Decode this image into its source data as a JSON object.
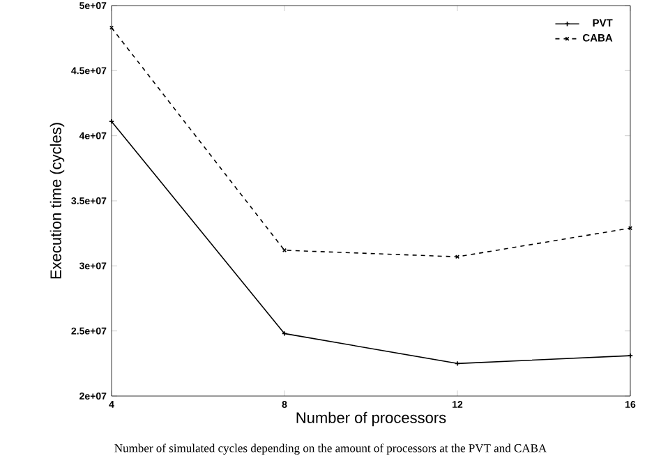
{
  "chart_data": {
    "type": "line",
    "xlabel": "Number of processors",
    "ylabel": "Execution time (cycles)",
    "x": [
      4,
      8,
      12,
      16
    ],
    "series": [
      {
        "name": "PVT",
        "color": "#000000",
        "marker": "plus",
        "line_style": "solid",
        "values": [
          41100000,
          24800000,
          22500000,
          23100000
        ]
      },
      {
        "name": "CABA",
        "color": "#000000",
        "marker": "cross",
        "line_style": "dashed",
        "values": [
          48300000,
          31200000,
          30700000,
          32900000
        ]
      }
    ],
    "xlim": [
      4,
      16
    ],
    "xticks": [
      4,
      8,
      12,
      16
    ],
    "ylim": [
      20000000,
      50000000
    ],
    "yticks": [
      {
        "value": 20000000,
        "label": "2e+07"
      },
      {
        "value": 25000000,
        "label": "2.5e+07"
      },
      {
        "value": 30000000,
        "label": "3e+07"
      },
      {
        "value": 35000000,
        "label": "3.5e+07"
      },
      {
        "value": 40000000,
        "label": "4e+07"
      },
      {
        "value": 45000000,
        "label": "4.5e+07"
      },
      {
        "value": 50000000,
        "label": "5e+07"
      }
    ],
    "legend": "top right",
    "grid": false,
    "annotations": [
      "Number of simulated cycles depending on the amount of processors at the PVT and CABA"
    ]
  }
}
